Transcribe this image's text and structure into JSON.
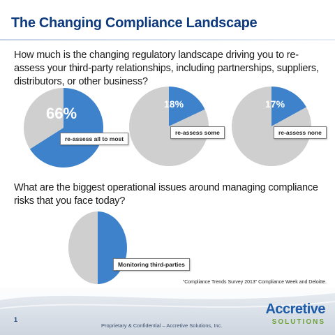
{
  "slide": {
    "title": "The Changing Compliance Landscape",
    "question_1": "How much is the changing regulatory landscape driving you to re-assess your third-party relationships, including partnerships, suppliers, distributors, or other business?",
    "question_2": "What are the biggest operational issues around managing compliance risks that you face today?",
    "source": "“Compliance Trends Survey 2013” Compliance Week and Deloitte.",
    "page_number": "1",
    "footer": "Proprietary & Confidential – Accretive Solutions, Inc.",
    "logo_main": "Accretive",
    "logo_sub": "SOLUTIONS"
  },
  "colors": {
    "title": "#0e3a7e",
    "highlight": "#3f82cc",
    "remainder": "#cfcfcf",
    "logo_blue": "#1d5ba7",
    "logo_green": "#6fa23b"
  },
  "chart_data": [
    {
      "type": "pie",
      "values": [
        66,
        34
      ],
      "value_label": "66%",
      "category": "re-assess all to most"
    },
    {
      "type": "pie",
      "values": [
        18,
        82
      ],
      "value_label": "18%",
      "category": "re-assess some"
    },
    {
      "type": "pie",
      "values": [
        17,
        83
      ],
      "value_label": "17%",
      "category": "re-assess none"
    },
    {
      "type": "pie",
      "values": [
        50,
        50
      ],
      "value_label": "",
      "category": "Monitoring third-parties"
    }
  ]
}
